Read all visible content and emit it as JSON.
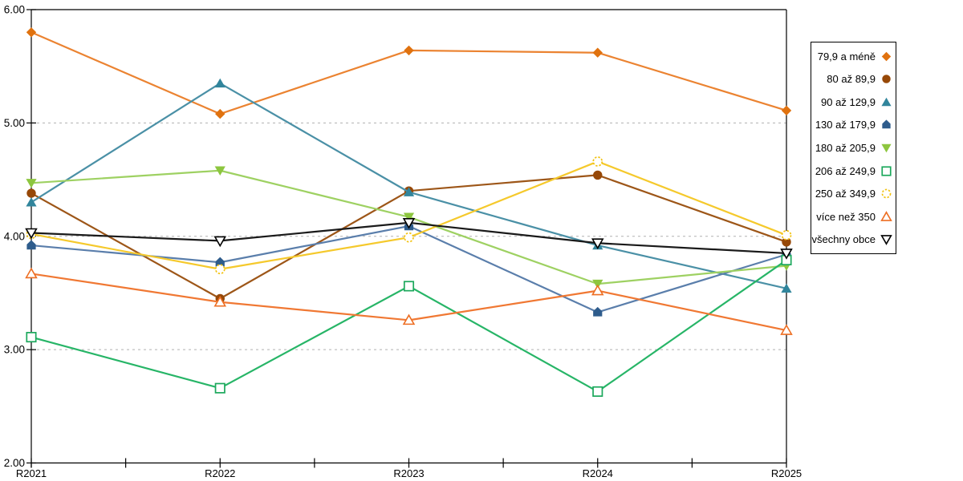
{
  "chart_data": {
    "type": "line",
    "title": "",
    "xlabel": "",
    "ylabel": "",
    "categories": [
      "R2021",
      "R2022",
      "R2023",
      "R2024",
      "R2025"
    ],
    "series": [
      {
        "name": "79,9 a méně",
        "marker": "diamond-filled",
        "color": "#E0720F",
        "lineColor": "#EB8331",
        "values": [
          5.8,
          5.08,
          5.64,
          5.62,
          5.11
        ]
      },
      {
        "name": "80 až 89,9",
        "marker": "circle-filled",
        "color": "#974807",
        "lineColor": "#9D5618",
        "values": [
          4.38,
          3.45,
          4.4,
          4.54,
          3.95
        ]
      },
      {
        "name": "90 až 129,9",
        "marker": "triangle-up-filled",
        "color": "#31859C",
        "lineColor": "#4A90A6",
        "values": [
          4.3,
          5.35,
          4.39,
          3.92,
          3.54
        ]
      },
      {
        "name": "130 až 179,9",
        "marker": "pentagon-filled",
        "color": "#2E5C8C",
        "lineColor": "#5A7EAB",
        "values": [
          3.92,
          3.77,
          4.09,
          3.33,
          3.84
        ]
      },
      {
        "name": "180 až 205,9",
        "marker": "triangle-down-filled",
        "color": "#8DC63F",
        "lineColor": "#9ED162",
        "values": [
          4.47,
          4.58,
          4.17,
          3.58,
          3.74
        ]
      },
      {
        "name": "206 až 249,9",
        "marker": "square-open",
        "color": "#1CA85C",
        "lineColor": "#27B567",
        "values": [
          3.11,
          2.66,
          3.56,
          2.63,
          3.79
        ]
      },
      {
        "name": "250 až 349,9",
        "marker": "circle-open-dashed",
        "color": "#F2C20F",
        "lineColor": "#F5C92C",
        "values": [
          4.02,
          3.71,
          3.99,
          4.66,
          4.01
        ]
      },
      {
        "name": "více než 350",
        "marker": "triangle-up-open",
        "color": "#ED6E22",
        "lineColor": "#F07833",
        "values": [
          3.67,
          3.42,
          3.26,
          3.52,
          3.17
        ]
      },
      {
        "name": "všechny obce",
        "marker": "triangle-down-open",
        "color": "#000000",
        "lineColor": "#1A1A1A",
        "values": [
          4.03,
          3.96,
          4.12,
          3.94,
          3.85
        ]
      }
    ],
    "ylim": [
      2.0,
      6.0
    ],
    "yticks": [
      {
        "value": 6.0,
        "label": "6.00"
      },
      {
        "value": 5.0,
        "label": "5.00"
      },
      {
        "value": 4.0,
        "label": "4.00"
      },
      {
        "value": 3.0,
        "label": "3.00"
      },
      {
        "value": 2.0,
        "label": "2.00"
      }
    ],
    "grid": "horizontal-dashed",
    "legend_position": "right"
  },
  "colors": {
    "background": "#FFFFFF",
    "axis": "#000000",
    "gridline": "#B0B0B0",
    "legend_border": "#000000"
  }
}
